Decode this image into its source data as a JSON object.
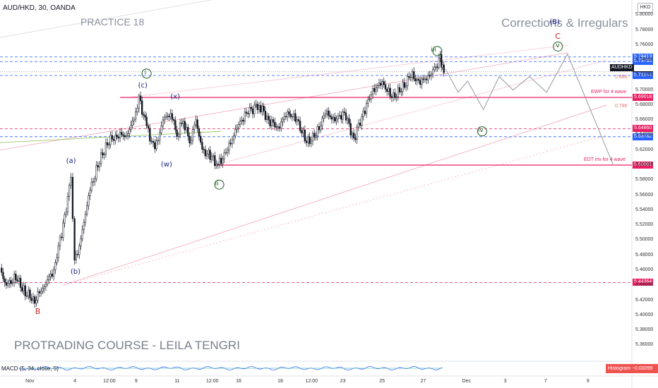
{
  "header": {
    "symbol": "AUD/HKD, 30, OANDA",
    "currency": "HKD"
  },
  "texts": {
    "practice": "PRACTICE 18",
    "corrections": "Corrections & Irregulars",
    "course": "PROTRADING COURSE - LEILA TENGRI"
  },
  "indicator": {
    "macd": "MACD (5, 34, close, 5)",
    "hist_label": "Histogram",
    "hist_value": "−0.00099"
  },
  "colors": {
    "blue_line": "#2962ff",
    "red_line": "#e91e63",
    "candle": "#131722",
    "projection": "#787b86",
    "text": "#131722",
    "bg": "#ffffff"
  },
  "chart_data": {
    "type": "candlestick",
    "title": "AUD/HKD, 30, OANDA",
    "ylim": [
      5.35,
      5.82
    ],
    "y_ticks": [
      "5.80000",
      "5.78000",
      "5.76000",
      "5.74000",
      "5.72000",
      "5.70000",
      "5.68000",
      "5.66000",
      "5.64000",
      "5.62000",
      "5.60000",
      "5.58000",
      "5.56000",
      "5.54000",
      "5.52000",
      "5.50000",
      "5.48000",
      "5.46000",
      "5.44000",
      "5.42000",
      "5.40000",
      "5.38000",
      "5.36000"
    ],
    "x_ticks": [
      "Nov",
      "4",
      "12:00",
      "9",
      "11",
      "12:00",
      "16",
      "18",
      "12:00",
      "23",
      "25",
      "27",
      "Dec",
      "3",
      "7",
      "9"
    ],
    "x_tick_pos": [
      0.047,
      0.123,
      0.17,
      0.22,
      0.283,
      0.333,
      0.38,
      0.446,
      0.49,
      0.545,
      0.607,
      0.672,
      0.738,
      0.804,
      0.868,
      0.935
    ],
    "price_path": [
      [
        0.0,
        5.46
      ],
      [
        0.01,
        5.44
      ],
      [
        0.025,
        5.45
      ],
      [
        0.04,
        5.43
      ],
      [
        0.055,
        5.42
      ],
      [
        0.07,
        5.44
      ],
      [
        0.085,
        5.46
      ],
      [
        0.1,
        5.52
      ],
      [
        0.112,
        5.58
      ],
      [
        0.118,
        5.47
      ],
      [
        0.128,
        5.5
      ],
      [
        0.14,
        5.56
      ],
      [
        0.155,
        5.6
      ],
      [
        0.17,
        5.63
      ],
      [
        0.185,
        5.64
      ],
      [
        0.2,
        5.64
      ],
      [
        0.212,
        5.66
      ],
      [
        0.22,
        5.69
      ],
      [
        0.232,
        5.65
      ],
      [
        0.245,
        5.62
      ],
      [
        0.258,
        5.66
      ],
      [
        0.27,
        5.67
      ],
      [
        0.28,
        5.64
      ],
      [
        0.29,
        5.66
      ],
      [
        0.3,
        5.63
      ],
      [
        0.31,
        5.66
      ],
      [
        0.32,
        5.62
      ],
      [
        0.335,
        5.61
      ],
      [
        0.345,
        5.6
      ],
      [
        0.36,
        5.62
      ],
      [
        0.375,
        5.65
      ],
      [
        0.39,
        5.67
      ],
      [
        0.41,
        5.68
      ],
      [
        0.425,
        5.66
      ],
      [
        0.44,
        5.65
      ],
      [
        0.455,
        5.67
      ],
      [
        0.47,
        5.66
      ],
      [
        0.485,
        5.63
      ],
      [
        0.5,
        5.64
      ],
      [
        0.515,
        5.67
      ],
      [
        0.53,
        5.66
      ],
      [
        0.545,
        5.67
      ],
      [
        0.56,
        5.635
      ],
      [
        0.575,
        5.67
      ],
      [
        0.59,
        5.7
      ],
      [
        0.605,
        5.71
      ],
      [
        0.62,
        5.69
      ],
      [
        0.635,
        5.7
      ],
      [
        0.65,
        5.72
      ],
      [
        0.665,
        5.71
      ],
      [
        0.68,
        5.72
      ],
      [
        0.69,
        5.73
      ],
      [
        0.697,
        5.745
      ],
      [
        0.7,
        5.73
      ],
      [
        0.705,
        5.728
      ]
    ],
    "projection_path": [
      [
        0.705,
        5.728
      ],
      [
        0.725,
        5.697
      ],
      [
        0.74,
        5.712
      ],
      [
        0.765,
        5.674
      ],
      [
        0.79,
        5.718
      ],
      [
        0.812,
        5.7
      ],
      [
        0.838,
        5.718
      ],
      [
        0.865,
        5.697
      ],
      [
        0.898,
        5.748
      ],
      [
        0.97,
        5.601
      ]
    ],
    "lines": [
      {
        "price": "5.74413",
        "color": "#2962ff",
        "style": "dashed",
        "label": ""
      },
      {
        "price": "5.73796",
        "color": "#2962ff",
        "style": "dashed",
        "label": ""
      },
      {
        "price": "5.72440",
        "color": "#131722",
        "style": "price",
        "label": "AUDHKD"
      },
      {
        "price": "5.71944",
        "color": "#2962ff",
        "style": "dashed",
        "label": "0.886"
      },
      {
        "price": "5.69018",
        "color": "#e91e63",
        "style": "solid",
        "label": "EWP for 4 wave"
      },
      {
        "price": "5.64860",
        "color": "#e91e63",
        "style": "dashed",
        "label": ""
      },
      {
        "price": "5.63782",
        "color": "#2962ff",
        "style": "dashed",
        "label": ""
      },
      {
        "price": "5.60001",
        "color": "#e91e63",
        "style": "solid",
        "label": "EDT inv for 4 wave"
      },
      {
        "price": "5.44364",
        "color": "#e91e63",
        "style": "dashed",
        "label": ""
      }
    ],
    "fib_labels": [
      {
        "text": "0.886",
        "price": 5.717
      },
      {
        "text": "0.786",
        "price": 5.678
      }
    ],
    "wave_labels": [
      {
        "text": "B",
        "x": 0.06,
        "price": 5.405,
        "color": "#c62828"
      },
      {
        "text": "(a)",
        "x": 0.118,
        "price": 5.605,
        "color": "#1a237e"
      },
      {
        "text": "(b)",
        "x": 0.125,
        "price": 5.457,
        "color": "#1a237e"
      },
      {
        "text": "i",
        "x": 0.232,
        "price": 5.722,
        "color": "#1b5e20"
      },
      {
        "text": "(c)",
        "x": 0.232,
        "price": 5.705,
        "color": "#1a237e"
      },
      {
        "text": "(x)",
        "x": 0.283,
        "price": 5.69,
        "color": "#1a237e"
      },
      {
        "text": "(w)",
        "x": 0.268,
        "price": 5.6,
        "color": "#1a237e"
      },
      {
        "text": "ii",
        "x": 0.347,
        "price": 5.574,
        "color": "#1b5e20"
      },
      {
        "text": "iii",
        "x": 0.692,
        "price": 5.752,
        "color": "#1b5e20"
      },
      {
        "text": "iv",
        "x": 0.763,
        "price": 5.645,
        "color": "#1b5e20"
      },
      {
        "text": "v",
        "x": 0.883,
        "price": 5.758,
        "color": "#1b5e20"
      },
      {
        "text": "(B)",
        "x": 0.883,
        "price": 5.79,
        "color": "#1a237e"
      },
      {
        "text": "C",
        "x": 0.883,
        "price": 5.772,
        "color": "#c62828"
      }
    ]
  }
}
